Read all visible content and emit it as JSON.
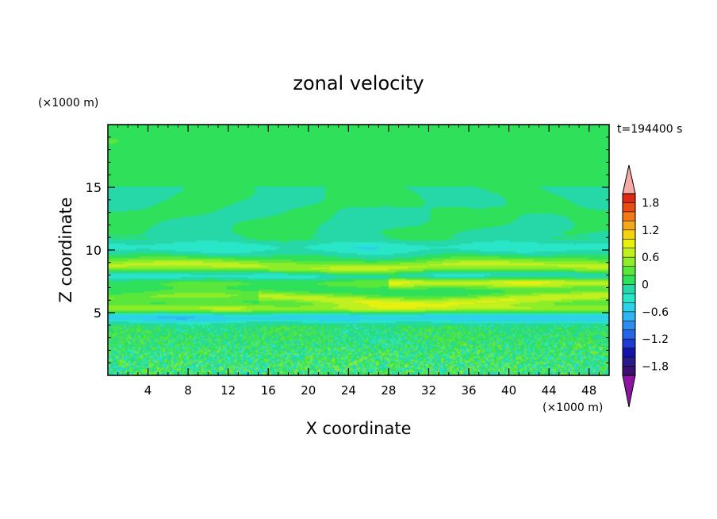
{
  "chart_data": {
    "type": "heatmap",
    "title": "zonal velocity",
    "xlabel": "X coordinate",
    "ylabel": "Z coordinate",
    "x_unit": "(×1000 m)",
    "y_unit": "(×1000 m)",
    "time_label": "t=194400 s",
    "xlim": [
      0,
      50
    ],
    "ylim": [
      0,
      20
    ],
    "x_ticks": [
      4,
      8,
      12,
      16,
      20,
      24,
      28,
      32,
      36,
      40,
      44,
      48
    ],
    "y_ticks": [
      5,
      10,
      15
    ],
    "x_minor_step": 1,
    "y_minor_step": 1,
    "grid": false,
    "colorbar": {
      "levels": [
        -2.0,
        -1.8,
        -1.6,
        -1.4,
        -1.2,
        -1.0,
        -0.8,
        -0.6,
        -0.4,
        -0.2,
        0.0,
        0.2,
        0.4,
        0.6,
        0.8,
        1.0,
        1.2,
        1.4,
        1.6,
        1.8,
        2.0
      ],
      "colors": [
        "#3a1070",
        "#2a1a8a",
        "#1414a8",
        "#1e3cd2",
        "#2864e6",
        "#2f8cf0",
        "#30b4f4",
        "#2ed2e8",
        "#2ae6c8",
        "#26d8a8",
        "#2ee05a",
        "#5ae63a",
        "#8ced28",
        "#c0f020",
        "#e8f010",
        "#f5d20f",
        "#f5a818",
        "#f07a18",
        "#e84c14",
        "#dc2814"
      ],
      "under_color": "#8c14a0",
      "over_color": "#f5aaa5",
      "tick_labels": [
        "1.8",
        "1.2",
        "0.6",
        "0",
        "−0.6",
        "−1.2",
        "−1.8"
      ],
      "tick_values": [
        1.8,
        1.2,
        0.6,
        0.0,
        -0.6,
        -1.2,
        -1.8
      ]
    },
    "field_description_bands": [
      {
        "z_range": [
          11,
          20
        ],
        "typical_u": 0.05
      },
      {
        "z_range": [
          8.2,
          9.2
        ],
        "typical_u": 0.65
      },
      {
        "z_range": [
          7.0,
          8.0
        ],
        "typical_u": 0.7
      },
      {
        "z_range": [
          5.8,
          6.6
        ],
        "typical_u": 0.75
      },
      {
        "z_range": [
          4.3,
          5.0
        ],
        "typical_u": -0.55
      },
      {
        "z_range": [
          0,
          4
        ],
        "typical_u": 0.0
      }
    ]
  }
}
